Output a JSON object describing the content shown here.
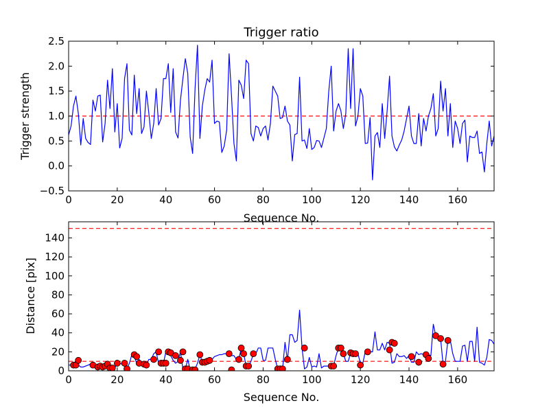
{
  "chart_data": [
    {
      "type": "line",
      "title": "Trigger ratio",
      "xlabel": "Sequence No.",
      "ylabel": "Trigger strength",
      "xlim": [
        0,
        175
      ],
      "ylim": [
        -0.5,
        2.5
      ],
      "xticks": [
        0,
        20,
        40,
        60,
        80,
        100,
        120,
        140,
        160
      ],
      "yticks": [
        -0.5,
        0.0,
        0.5,
        1.0,
        1.5,
        2.0,
        2.5
      ],
      "xtick_labels": [
        "0",
        "20",
        "40",
        "60",
        "80",
        "100",
        "120",
        "140",
        "160"
      ],
      "ytick_labels": [
        "−0.5",
        "0.0",
        "0.5",
        "1.0",
        "1.5",
        "2.0",
        "2.5"
      ],
      "threshold": 1.0,
      "series": [
        {
          "name": "trigger strength",
          "color": "#0000ff",
          "values": [
            0.62,
            0.8,
            1.2,
            1.4,
            1.05,
            0.42,
            0.95,
            0.55,
            0.47,
            0.43,
            1.32,
            1.1,
            1.4,
            1.42,
            0.48,
            0.85,
            1.72,
            1.15,
            1.95,
            0.68,
            1.25,
            0.36,
            0.55,
            1.75,
            2.05,
            0.72,
            0.62,
            1.82,
            1.05,
            1.55,
            0.65,
            0.78,
            1.5,
            1.05,
            0.55,
            0.85,
            1.55,
            0.82,
            0.95,
            1.75,
            1.75,
            2.05,
            1.07,
            1.95,
            0.68,
            0.56,
            1.32,
            1.75,
            2.15,
            1.85,
            0.58,
            0.25,
            1.55,
            2.42,
            0.55,
            1.2,
            1.52,
            1.75,
            1.68,
            2.12,
            0.85,
            0.9,
            0.88,
            0.27,
            0.4,
            0.72,
            2.25,
            1.4,
            0.45,
            0.1,
            1.72,
            1.62,
            1.35,
            2.12,
            2.05,
            0.65,
            0.5,
            0.8,
            0.77,
            0.6,
            0.75,
            0.8,
            0.52,
            0.85,
            1.6,
            1.5,
            1.4,
            0.95,
            0.97,
            1.2,
            0.9,
            0.82,
            0.1,
            0.63,
            0.65,
            1.78,
            0.5,
            0.52,
            0.35,
            0.75,
            0.33,
            0.37,
            0.51,
            0.5,
            0.37,
            0.56,
            0.75,
            1.5,
            2.0,
            0.7,
            1.1,
            1.25,
            1.1,
            0.75,
            1.05,
            2.35,
            1.15,
            2.35,
            0.8,
            1.0,
            1.55,
            1.4,
            0.45,
            0.46,
            0.97,
            -0.28,
            0.6,
            0.67,
            0.37,
            1.25,
            0.55,
            1.1,
            1.8,
            0.6,
            0.38,
            0.3,
            0.42,
            0.52,
            0.7,
            0.95,
            1.2,
            0.6,
            0.45,
            0.45,
            1.05,
            0.4,
            0.95,
            0.7,
            1.0,
            1.15,
            1.45,
            0.6,
            0.75,
            1.7,
            1.1,
            1.55,
            0.6,
            1.25,
            0.37,
            0.9,
            0.75,
            0.45,
            0.85,
            0.92,
            0.08,
            0.6,
            0.57,
            0.57,
            0.7,
            0.25,
            0.28,
            -0.12,
            0.45,
            0.9,
            0.4,
            0.6
          ]
        }
      ]
    },
    {
      "type": "line",
      "title": "",
      "xlabel": "Sequence No.",
      "ylabel": "Distance [pix]",
      "xlim": [
        0,
        175
      ],
      "ylim": [
        0,
        157
      ],
      "xticks": [
        0,
        20,
        40,
        60,
        80,
        100,
        120,
        140,
        160
      ],
      "yticks": [
        0,
        20,
        40,
        60,
        80,
        100,
        120,
        140
      ],
      "xtick_labels": [
        "0",
        "20",
        "40",
        "60",
        "80",
        "100",
        "120",
        "140",
        "160"
      ],
      "ytick_labels": [
        "0",
        "20",
        "40",
        "60",
        "80",
        "100",
        "120",
        "140"
      ],
      "thresholds": [
        150,
        10
      ],
      "series": [
        {
          "name": "distance",
          "color": "#0000ff",
          "values": [
            6,
            6,
            6,
            11,
            6,
            4,
            4,
            5,
            6,
            7,
            7,
            5,
            4,
            4,
            5,
            5,
            7,
            3,
            3,
            3,
            8,
            8,
            7,
            9,
            2,
            8,
            17,
            15,
            8,
            12,
            7,
            6,
            6,
            12,
            12,
            18,
            20,
            8,
            8,
            8,
            20,
            19,
            16,
            11,
            8,
            10,
            20,
            2,
            2,
            12,
            1,
            1,
            2,
            8,
            17,
            9,
            9,
            10,
            11,
            12,
            15,
            16,
            17,
            17,
            18,
            18,
            18,
            16,
            16,
            12,
            12,
            24,
            18,
            5,
            5,
            10,
            18,
            18,
            24,
            24,
            11,
            11,
            24,
            24,
            24,
            12,
            2,
            2,
            2,
            30,
            11,
            38,
            38,
            30,
            32,
            64,
            24,
            2,
            4,
            14,
            4,
            5,
            4,
            18,
            3,
            5,
            5,
            5,
            5,
            5,
            16,
            24,
            24,
            18,
            10,
            10,
            19,
            18,
            18,
            18,
            8,
            8,
            20,
            20,
            20,
            20,
            41,
            22,
            22,
            29,
            22,
            30,
            29,
            8,
            9,
            18,
            15,
            15,
            16,
            13,
            16,
            9,
            9,
            20,
            17,
            18,
            17,
            20,
            17,
            16,
            49,
            37,
            36,
            34,
            7,
            10,
            32,
            32,
            18,
            10,
            10,
            10,
            26,
            27,
            10,
            31,
            31,
            10,
            46,
            9,
            8,
            6,
            14,
            33,
            32,
            28
          ]
        },
        {
          "name": "detections",
          "color": "#ff0000",
          "points": [
            [
              2,
              6
            ],
            [
              3,
              6
            ],
            [
              4,
              11
            ],
            [
              10,
              6
            ],
            [
              12,
              4
            ],
            [
              13,
              5
            ],
            [
              14,
              4
            ],
            [
              15,
              5
            ],
            [
              16,
              7
            ],
            [
              17,
              3
            ],
            [
              18,
              3
            ],
            [
              20,
              8
            ],
            [
              23,
              8
            ],
            [
              24,
              2
            ],
            [
              27,
              17
            ],
            [
              28,
              15
            ],
            [
              29,
              8
            ],
            [
              31,
              7
            ],
            [
              32,
              6
            ],
            [
              35,
              12
            ],
            [
              37,
              20
            ],
            [
              38,
              8
            ],
            [
              39,
              8
            ],
            [
              40,
              8
            ],
            [
              41,
              20
            ],
            [
              42,
              19
            ],
            [
              44,
              16
            ],
            [
              46,
              11
            ],
            [
              47,
              20
            ],
            [
              48,
              2
            ],
            [
              49,
              2
            ],
            [
              51,
              1
            ],
            [
              52,
              1
            ],
            [
              54,
              17
            ],
            [
              55,
              9
            ],
            [
              56,
              9
            ],
            [
              57,
              10
            ],
            [
              58,
              11
            ],
            [
              66,
              18
            ],
            [
              67,
              1
            ],
            [
              70,
              12
            ],
            [
              71,
              24
            ],
            [
              72,
              18
            ],
            [
              73,
              5
            ],
            [
              74,
              5
            ],
            [
              76,
              18
            ],
            [
              86,
              2
            ],
            [
              87,
              2
            ],
            [
              88,
              2
            ],
            [
              90,
              12
            ],
            [
              97,
              24
            ],
            [
              108,
              5
            ],
            [
              109,
              5
            ],
            [
              111,
              24
            ],
            [
              112,
              24
            ],
            [
              113,
              18
            ],
            [
              116,
              19
            ],
            [
              117,
              18
            ],
            [
              118,
              18
            ],
            [
              120,
              6
            ],
            [
              123,
              20
            ],
            [
              132,
              22
            ],
            [
              133,
              30
            ],
            [
              134,
              29
            ],
            [
              141,
              15
            ],
            [
              144,
              9
            ],
            [
              147,
              17
            ],
            [
              148,
              13
            ],
            [
              151,
              37
            ],
            [
              153,
              34
            ],
            [
              154,
              7
            ],
            [
              156,
              32
            ]
          ]
        }
      ]
    }
  ]
}
